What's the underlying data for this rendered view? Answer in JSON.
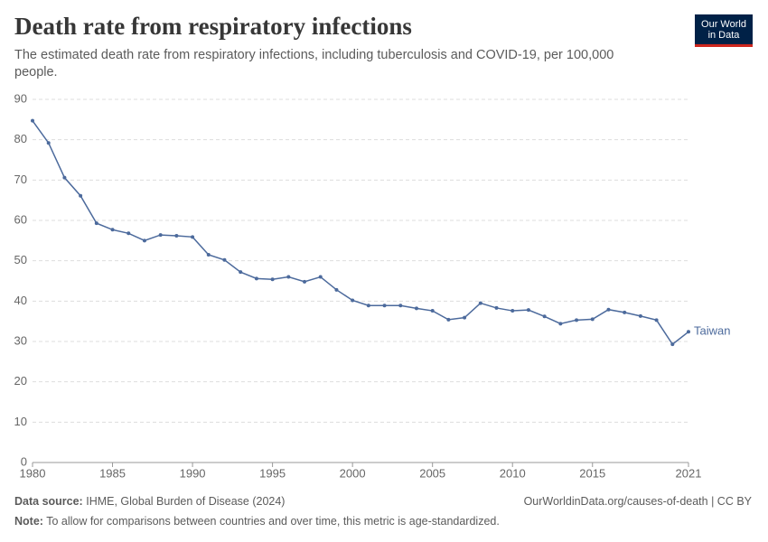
{
  "chart_data": {
    "type": "line",
    "title": "Death rate from respiratory infections",
    "subtitle": "The estimated death rate from respiratory infections, including tuberculosis and COVID-19, per 100,000 people.",
    "logo": [
      "Our World",
      "in Data"
    ],
    "x": [
      1980,
      1981,
      1982,
      1983,
      1984,
      1985,
      1986,
      1987,
      1988,
      1989,
      1990,
      1991,
      1992,
      1993,
      1994,
      1995,
      1996,
      1997,
      1998,
      1999,
      2000,
      2001,
      2002,
      2003,
      2004,
      2005,
      2006,
      2007,
      2008,
      2009,
      2010,
      2011,
      2012,
      2013,
      2014,
      2015,
      2016,
      2017,
      2018,
      2019,
      2020,
      2021
    ],
    "series": [
      {
        "name": "Taiwan",
        "color": "#4c6a9c",
        "values": [
          84.7,
          79.2,
          70.6,
          66.1,
          59.3,
          57.7,
          56.8,
          55.0,
          56.4,
          56.2,
          55.9,
          51.5,
          50.2,
          47.2,
          45.6,
          45.4,
          46.0,
          44.8,
          46.0,
          42.8,
          40.2,
          38.9,
          38.9,
          38.9,
          38.2,
          37.6,
          35.4,
          35.9,
          39.5,
          38.3,
          37.6,
          37.8,
          36.2,
          34.4,
          35.3,
          35.5,
          37.9,
          37.2,
          36.3,
          35.3,
          29.3,
          32.4
        ]
      }
    ],
    "xlim": [
      1980,
      2021
    ],
    "xticks": [
      1980,
      1985,
      1990,
      1995,
      2000,
      2005,
      2010,
      2015,
      2021
    ],
    "ylim": [
      0,
      90
    ],
    "yticks": [
      0,
      10,
      20,
      30,
      40,
      50,
      60,
      70,
      80,
      90
    ],
    "grid": true,
    "source_label": "Data source:",
    "source": "IHME, Global Burden of Disease (2024)",
    "url": "OurWorldinData.org/causes-of-death | CC BY",
    "note_label": "Note:",
    "note": "To allow for comparisons between countries and over time, this metric is age-standardized."
  }
}
